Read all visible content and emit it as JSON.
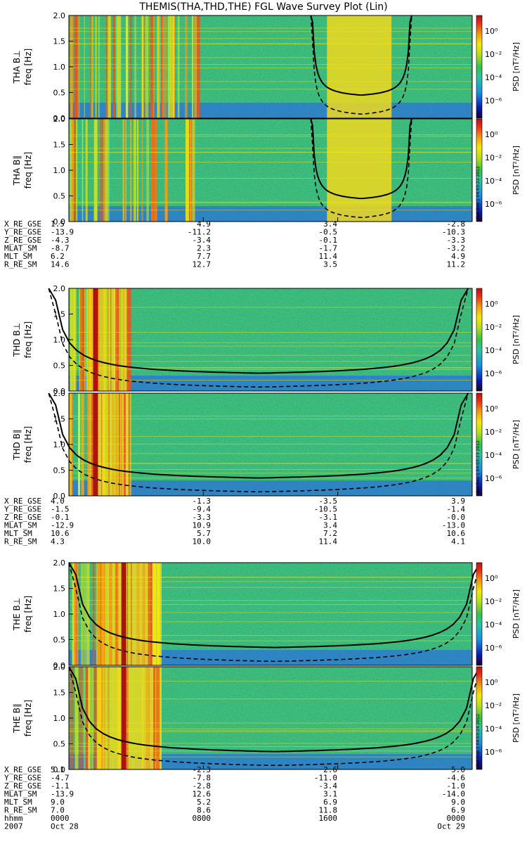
{
  "title": "THEMIS(THA,THD,THE) FGL Wave Survey Plot (Lin)",
  "chart_data": {
    "type": "heatmap",
    "ylabel_unit": "freq [Hz]",
    "ylim": [
      0,
      2.0
    ],
    "y_ticks": [
      "0.0",
      "0.5",
      "1.0",
      "1.5",
      "2.0"
    ],
    "colorbar": {
      "label": "PSD [nT²/Hz]",
      "scale": "log",
      "ticks": [
        "10⁰",
        "10⁻²",
        "10⁻⁴",
        "10⁻⁶"
      ],
      "colors": [
        "#1b0030",
        "#0a1aa8",
        "#1b8fe0",
        "#2ec2a0",
        "#34c24a",
        "#b8dd20",
        "#f2e70a",
        "#f39a14",
        "#e33517",
        "#b81010"
      ]
    },
    "x_axis": {
      "label_rows": [
        "hhmm",
        "2007"
      ],
      "start": "2007 Oct 28 0000",
      "end": "2007 Oct 29 0000"
    },
    "probes": [
      {
        "panels": [
          "THA B⊥",
          "THA B∥"
        ],
        "stamp": "Sat Sep  1 04:03:22 2012",
        "ephemeris": [
          {
            "name": "X_RE_GSE",
            "values": [
              "1.5",
              "4.9",
              "3.4",
              "-2.8"
            ]
          },
          {
            "name": "Y_RE_GSE",
            "values": [
              "-13.9",
              "-11.2",
              "-0.5",
              "-10.3"
            ]
          },
          {
            "name": "Z_RE_GSE",
            "values": [
              "-4.3",
              "-3.4",
              "-0.1",
              "-3.3"
            ]
          },
          {
            "name": "MLAT_SM",
            "values": [
              "-8.7",
              "2.3",
              "-1.7",
              "-3.2"
            ]
          },
          {
            "name": "MLT_SM",
            "values": [
              "6.2",
              "7.7",
              "11.4",
              "4.9"
            ]
          },
          {
            "name": "R_RE_SM",
            "values": [
              "14.6",
              "12.7",
              "3.5",
              "11.2"
            ]
          }
        ]
      },
      {
        "panels": [
          "THD B⊥",
          "THD B∥"
        ],
        "stamp": "Sat Sep  1 04:03:23 2012",
        "ephemeris": [
          {
            "name": "X_RE_GSE",
            "values": [
              "4.0",
              "-1.3",
              "-3.5",
              "3.9"
            ]
          },
          {
            "name": "Y_RE_GSE",
            "values": [
              "-1.5",
              "-9.4",
              "-10.5",
              "-1.4"
            ]
          },
          {
            "name": "Z_RE_GSE",
            "values": [
              "-0.1",
              "-3.3",
              "-3.1",
              "-0.0"
            ]
          },
          {
            "name": "MLAT_SM",
            "values": [
              "-12.9",
              "10.9",
              "3.4",
              "-13.0"
            ]
          },
          {
            "name": "MLT_SM",
            "values": [
              "10.6",
              "5.7",
              "7.2",
              "10.6"
            ]
          },
          {
            "name": "R_RE_SM",
            "values": [
              "4.3",
              "10.0",
              "11.4",
              "4.1"
            ]
          }
        ]
      },
      {
        "panels": [
          "THE B⊥",
          "THE B∥"
        ],
        "stamp": "Sat Sep  1 04:03:24 2012",
        "ephemeris": [
          {
            "name": "X_RE_GSE",
            "values": [
              "5.1",
              "-2.3",
              "2.6",
              "5.0"
            ]
          },
          {
            "name": "Y_RE_GSE",
            "values": [
              "-4.7",
              "-7.8",
              "-11.0",
              "-4.6"
            ]
          },
          {
            "name": "Z_RE_GSE",
            "values": [
              "-1.1",
              "-2.8",
              "-3.4",
              "-1.0"
            ]
          },
          {
            "name": "MLAT_SM",
            "values": [
              "-13.9",
              "12.6",
              "3.1",
              "-14.0"
            ]
          },
          {
            "name": "MLT_SM",
            "values": [
              "9.0",
              "5.2",
              "6.9",
              "9.0"
            ]
          },
          {
            "name": "R_RE_SM",
            "values": [
              "7.0",
              "8.6",
              "11.8",
              "6.9"
            ]
          }
        ],
        "time_rows": [
          {
            "name": "hhmm",
            "values": [
              "0000",
              "0800",
              "1600",
              "0000"
            ]
          },
          {
            "name": "2007",
            "values": [
              "Oct 28",
              "",
              "",
              "Oct 29"
            ]
          }
        ]
      }
    ]
  }
}
